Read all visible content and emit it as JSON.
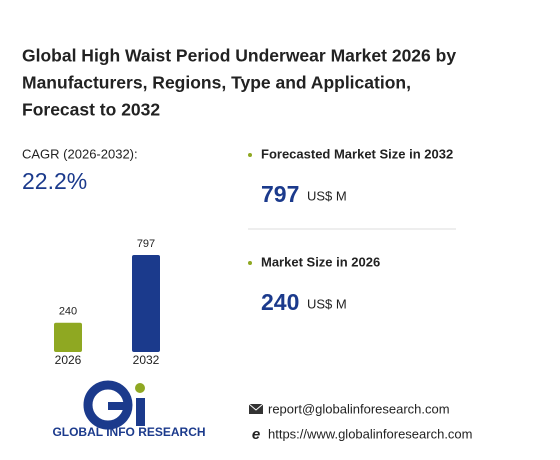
{
  "header": {
    "title": [
      "Global High Waist Period Underwear Market 2026 by",
      "Manufacturers, Regions, Type and Application,",
      "Forecast to 2032"
    ]
  },
  "cagr": {
    "label": "CAGR (2026-2032):",
    "value": "22.2%"
  },
  "stats": [
    {
      "label": "Forecasted Market Size in 2032",
      "value": 797,
      "unit": "US$ M"
    },
    {
      "label": "Market Size in 2026",
      "value": 240,
      "unit": "US$ M"
    }
  ],
  "chart_data": {
    "type": "bar",
    "categories": [
      "2026",
      "2032"
    ],
    "values": [
      240,
      797
    ],
    "colors": [
      "#8fa822",
      "#1b3a8c"
    ]
  },
  "footer": {
    "logo": "GLOBAL INFO RESEARCH",
    "email": "report@globalinforesearch.com",
    "website": "https://www.globalinforesearch.com"
  }
}
